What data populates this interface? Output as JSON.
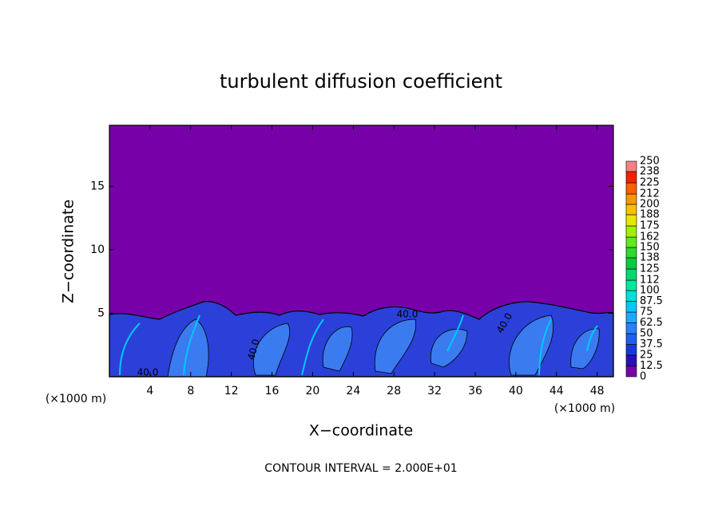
{
  "chart_data": {
    "type": "contour",
    "title": "turbulent diffusion coefficient",
    "xlabel": "X−coordinate",
    "ylabel": "Z−coordinate",
    "x_unit_label": "(×1000 m)",
    "footer": "CONTOUR INTERVAL = 2.000E+01",
    "xlim": [
      0,
      49.6
    ],
    "ylim": [
      0,
      19.8
    ],
    "xticks": [
      4,
      8,
      12,
      16,
      20,
      24,
      28,
      32,
      36,
      40,
      44,
      48
    ],
    "yticks": [
      5,
      10,
      15
    ],
    "contour_labels": [
      "40.0",
      "40.0",
      "40.0",
      "40.0"
    ],
    "colorbar": {
      "clim": [
        0,
        250
      ],
      "levels": [
        0,
        12.5,
        25,
        37.5,
        50,
        62.5,
        75,
        87.5,
        100,
        112,
        125,
        138,
        150,
        162,
        175,
        188,
        200,
        212,
        225,
        238,
        250
      ],
      "colors": [
        "#7800a8",
        "#2a10b8",
        "#1838d8",
        "#2060f0",
        "#2a80ff",
        "#20a8ff",
        "#00c8ff",
        "#00e0d8",
        "#00e8a0",
        "#00d870",
        "#10c840",
        "#30d830",
        "#60e820",
        "#a0f000",
        "#e8e800",
        "#f8c000",
        "#f89800",
        "#f86000",
        "#f82000",
        "#f88080"
      ]
    }
  }
}
